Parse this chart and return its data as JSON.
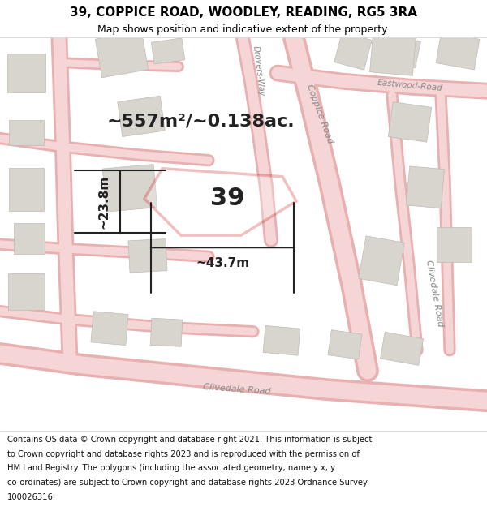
{
  "title": "39, COPPICE ROAD, WOODLEY, READING, RG5 3RA",
  "subtitle": "Map shows position and indicative extent of the property.",
  "footer_lines": [
    "Contains OS data © Crown copyright and database right 2021. This information is subject",
    "to Crown copyright and database rights 2023 and is reproduced with the permission of",
    "HM Land Registry. The polygons (including the associated geometry, namely x, y",
    "co-ordinates) are subject to Crown copyright and database rights 2023 Ordnance Survey",
    "100026316."
  ],
  "area_text": "~557m²/~0.138ac.",
  "property_number": "39",
  "dim_width": "~43.7m",
  "dim_height": "~23.8m",
  "map_bg": "#ede8e0",
  "road_outline": "#e8b0b0",
  "road_fill": "#f5d5d5",
  "building_fill": "#d8d4ce",
  "building_edge": "#c0bab4",
  "red_color": "#cc0000",
  "label_color": "#888888",
  "text_color": "#222222",
  "title_fontsize": 11,
  "subtitle_fontsize": 9,
  "footer_fontsize": 7.2,
  "area_fontsize": 16,
  "number_fontsize": 22,
  "dim_fontsize": 11
}
